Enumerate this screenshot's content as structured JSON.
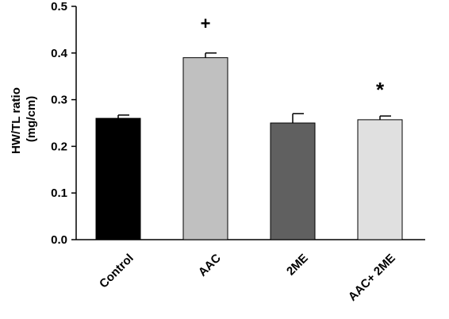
{
  "chart_data": {
    "type": "bar",
    "ylabel_line1": "HW/TL ratio",
    "ylabel_line2": "(mg/cm)",
    "ylim": [
      0,
      0.5
    ],
    "yticks": [
      "0.0",
      "0.1",
      "0.2",
      "0.3",
      "0.4",
      "0.5"
    ],
    "categories": [
      "Control",
      "AAC",
      "2ME",
      "AAC+ 2ME"
    ],
    "values": [
      0.26,
      0.39,
      0.25,
      0.257
    ],
    "errors": [
      0.007,
      0.01,
      0.02,
      0.008
    ],
    "bar_colors": [
      "#000000",
      "#c0c0c0",
      "#606060",
      "#e0e0e0"
    ],
    "annotations": [
      "",
      "+",
      "",
      "*"
    ]
  }
}
